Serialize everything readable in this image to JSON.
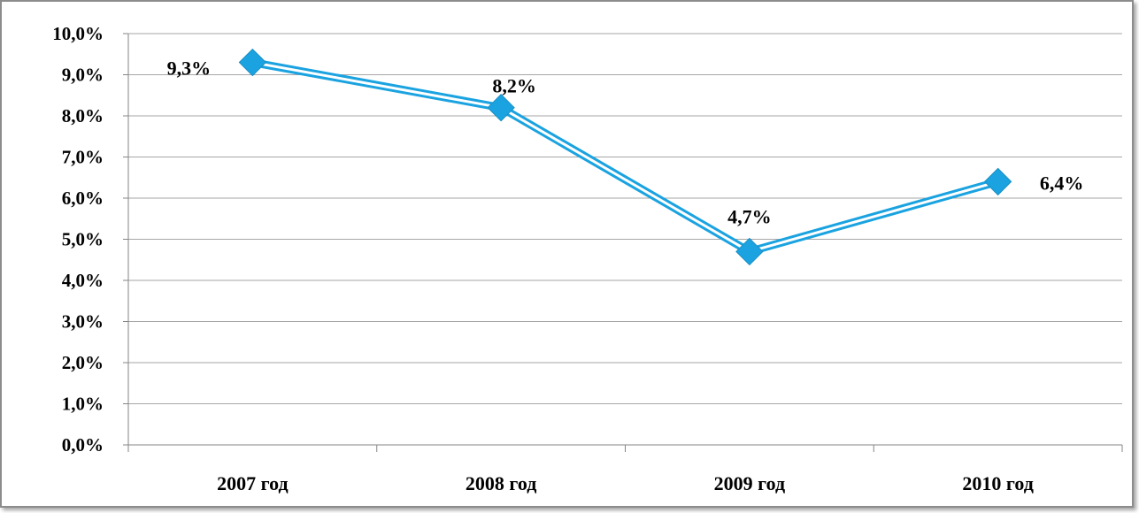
{
  "chart_data": {
    "type": "line",
    "categories": [
      "2007 год",
      "2008 год",
      "2009 год",
      "2010 год"
    ],
    "series": [
      {
        "values": [
          9.3,
          8.2,
          4.7,
          6.4
        ],
        "data_labels": [
          "9,3%",
          "8,2%",
          "4,7%",
          "6,4%"
        ]
      }
    ],
    "ylim": [
      0,
      10
    ],
    "y_ticks": [
      "0,0%",
      "1,0%",
      "2,0%",
      "3,0%",
      "4,0%",
      "5,0%",
      "6,0%",
      "7,0%",
      "8,0%",
      "9,0%",
      "10,0%"
    ],
    "grid": true,
    "legend": "none",
    "title": "",
    "xlabel": "",
    "ylabel": ""
  },
  "colors": {
    "line": "#1aa3e0",
    "marker": "#1aa3e0",
    "grid": "#a6a6a6",
    "axis": "#868686"
  }
}
